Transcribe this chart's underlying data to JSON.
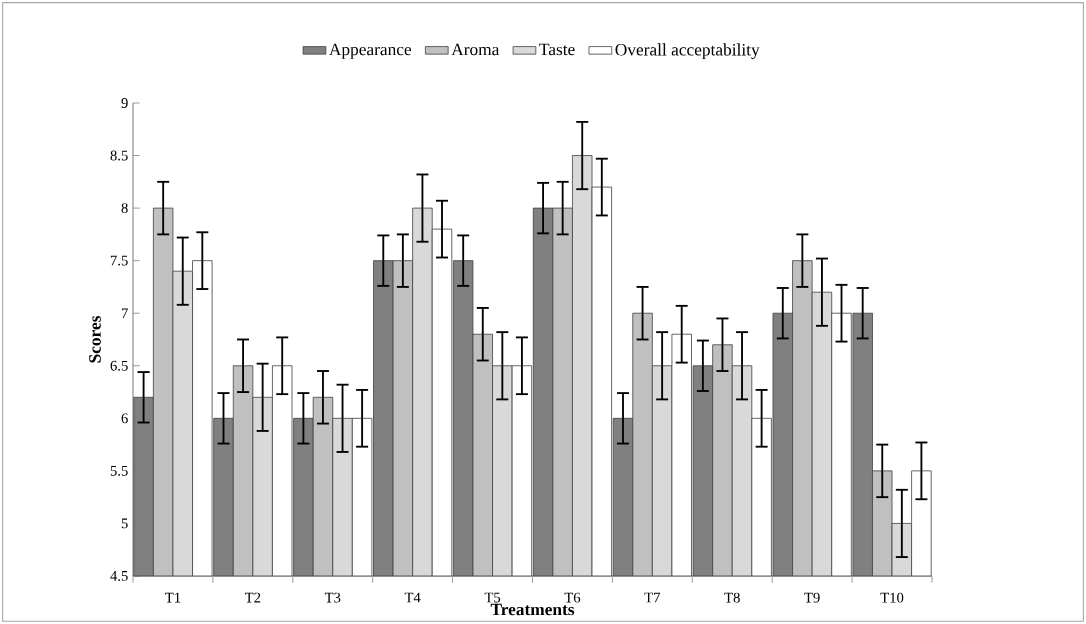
{
  "chart_data": {
    "type": "bar",
    "xlabel": "Treatments",
    "ylabel": "Scores",
    "categories": [
      "T1",
      "T2",
      "T3",
      "T4",
      "T5",
      "T6",
      "T7",
      "T8",
      "T9",
      "T10"
    ],
    "series": [
      {
        "name": "Appearance",
        "color": "#808080",
        "values": [
          6.2,
          6,
          6,
          7.5,
          7.5,
          8,
          6,
          6.5,
          7,
          7
        ],
        "errors": [
          0.24,
          0.24,
          0.24,
          0.24,
          0.24,
          0.24,
          0.24,
          0.24,
          0.24,
          0.24
        ]
      },
      {
        "name": "Aroma",
        "color": "#c0c0c0",
        "values": [
          8,
          6.5,
          6.2,
          7.5,
          6.8,
          8,
          7,
          6.7,
          7.5,
          5.5
        ],
        "errors": [
          0.25,
          0.25,
          0.25,
          0.25,
          0.25,
          0.25,
          0.25,
          0.25,
          0.25,
          0.25
        ]
      },
      {
        "name": "Taste",
        "color": "#d9d9d9",
        "values": [
          7.4,
          6.2,
          6,
          8,
          6.5,
          8.5,
          6.5,
          6.5,
          7.2,
          5
        ],
        "errors": [
          0.32,
          0.32,
          0.32,
          0.32,
          0.32,
          0.32,
          0.32,
          0.32,
          0.32,
          0.32
        ]
      },
      {
        "name": "Overall acceptability",
        "color": "#ffffff",
        "values": [
          7.5,
          6.5,
          6,
          7.8,
          6.5,
          8.2,
          6.8,
          6,
          7,
          5.5
        ],
        "errors": [
          0.27,
          0.27,
          0.27,
          0.27,
          0.27,
          0.27,
          0.27,
          0.27,
          0.27,
          0.27
        ]
      }
    ],
    "ylim": [
      4.5,
      9
    ],
    "yticks": [
      4.5,
      5,
      5.5,
      6,
      6.5,
      7,
      7.5,
      8,
      8.5,
      9
    ],
    "grid": false,
    "legend": "top"
  }
}
